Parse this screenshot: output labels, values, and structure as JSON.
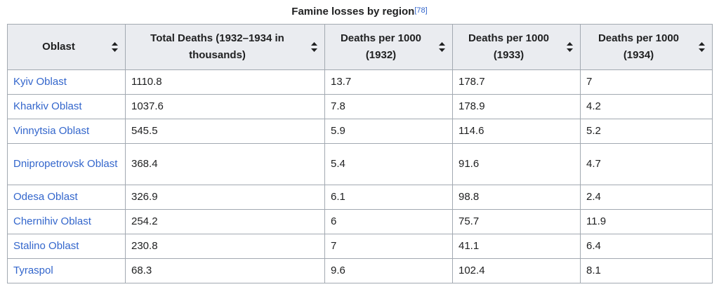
{
  "caption": {
    "text": "Famine losses by region",
    "ref": "[78]"
  },
  "headers": [
    "Oblast",
    "Total Deaths (1932–1934 in thousands)",
    "Deaths per 1000 (1932)",
    "Deaths per 1000 (1933)",
    "Deaths per 1000 (1934)"
  ],
  "rows": [
    [
      "Kyiv Oblast",
      "1110.8",
      "13.7",
      "178.7",
      "7"
    ],
    [
      "Kharkiv Oblast",
      "1037.6",
      "7.8",
      "178.9",
      "4.2"
    ],
    [
      "Vinnytsia Oblast",
      "545.5",
      "5.9",
      "114.6",
      "5.2"
    ],
    [
      "Dnipropetrovsk Oblast",
      "368.4",
      "5.4",
      "91.6",
      "4.7"
    ],
    [
      "Odesa Oblast",
      "326.9",
      "6.1",
      "98.8",
      "2.4"
    ],
    [
      "Chernihiv Oblast",
      "254.2",
      "6",
      "75.7",
      "11.9"
    ],
    [
      "Stalino Oblast",
      "230.8",
      "7",
      "41.1",
      "6.4"
    ],
    [
      "Tyraspol",
      "68.3",
      "9.6",
      "102.4",
      "8.1"
    ]
  ],
  "icons": {
    "sort": "sort-arrows-icon"
  },
  "colors": {
    "link": "#3366cc",
    "header_bg": "#eaecf0",
    "border": "#a2a9b1"
  }
}
